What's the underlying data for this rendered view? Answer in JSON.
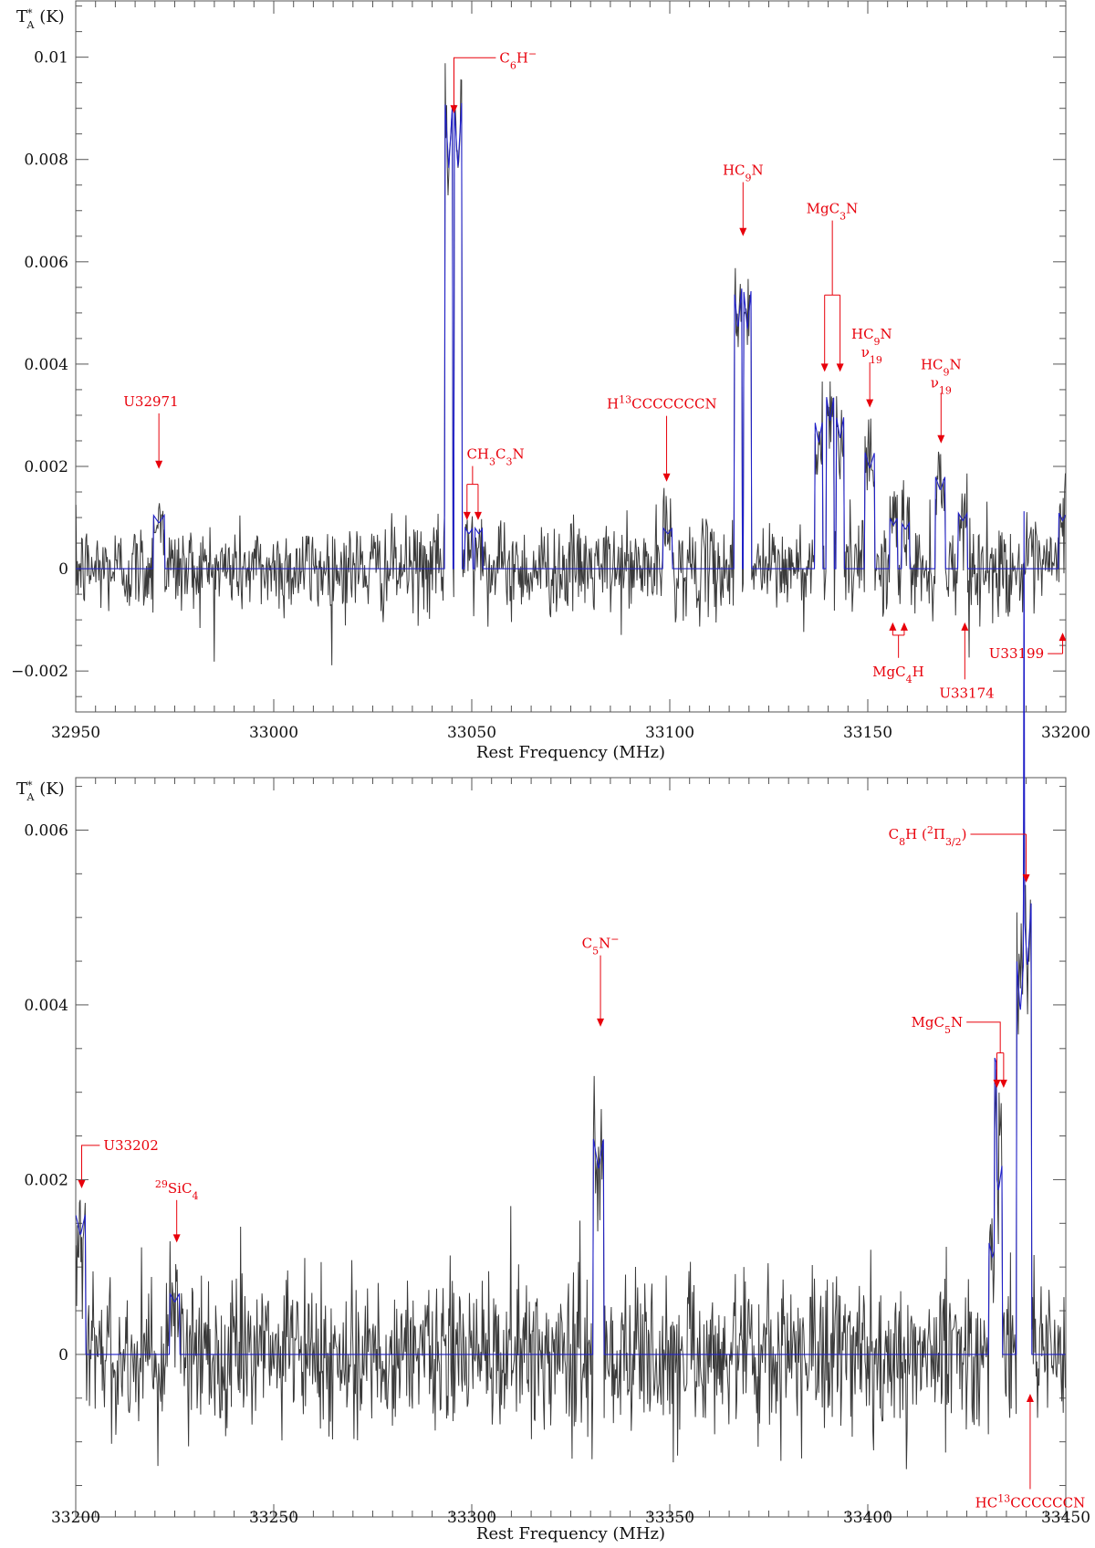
{
  "chart_data": [
    {
      "type": "line",
      "xlabel": "Rest Frequency (MHz)",
      "ylabel": {
        "main": "T",
        "sup": "*",
        "sub": "A",
        "unit": " (K)"
      },
      "xlim": [
        32950,
        33200
      ],
      "ylim": [
        -0.0028,
        0.0111
      ],
      "xticks": [
        32950,
        33000,
        33050,
        33100,
        33150,
        33200
      ],
      "xtick_labels": [
        "32950",
        "33000",
        "33050",
        "33100",
        "33150",
        "33200"
      ],
      "yticks": [
        -0.002,
        0,
        0.002,
        0.004,
        0.006,
        0.008,
        0.01
      ],
      "ytick_labels": [
        "−0.002",
        "0",
        "0.002",
        "0.004",
        "0.006",
        "0.008",
        "0.01"
      ],
      "grid": false,
      "series": [
        {
          "kind": "spectrum",
          "color": "#3a3a3a"
        },
        {
          "kind": "fit",
          "color": "#2020c8"
        }
      ],
      "lines": [
        {
          "freq": 32971,
          "amp": 0.00105,
          "width": 1.4
        },
        {
          "freq": 33044.2,
          "amp": 0.0092,
          "width": 1.0
        },
        {
          "freq": 33046.5,
          "amp": 0.0092,
          "width": 1.0
        },
        {
          "freq": 33049.3,
          "amp": 0.0008,
          "width": 1.0
        },
        {
          "freq": 33051.8,
          "amp": 0.0008,
          "width": 1.0
        },
        {
          "freq": 33099.5,
          "amp": 0.0008,
          "width": 1.2
        },
        {
          "freq": 33117.2,
          "amp": 0.0055,
          "width": 1.0
        },
        {
          "freq": 33119.6,
          "amp": 0.0055,
          "width": 1.0
        },
        {
          "freq": 33137.6,
          "amp": 0.0029,
          "width": 1.0
        },
        {
          "freq": 33140.5,
          "amp": 0.0034,
          "width": 1.0
        },
        {
          "freq": 33143.0,
          "amp": 0.003,
          "width": 1.0
        },
        {
          "freq": 33150.5,
          "amp": 0.0023,
          "width": 1.3
        },
        {
          "freq": 33156.5,
          "amp": 0.001,
          "width": 1.0
        },
        {
          "freq": 33159.5,
          "amp": 0.0009,
          "width": 1.0
        },
        {
          "freq": 33168.3,
          "amp": 0.0018,
          "width": 1.2
        },
        {
          "freq": 33174.0,
          "amp": 0.0011,
          "width": 1.2
        },
        {
          "freq": 33199.2,
          "amp": 0.0011,
          "width": 1.0
        }
      ],
      "annotations": [
        {
          "label_html": "U32971",
          "label_freq": 32969,
          "label_y": 0.00318,
          "arrows": [
            {
              "freq": 32971,
              "tip": 0.00195
            }
          ],
          "dir": "down"
        },
        {
          "label_html": "C<tspan baseline-shift='sub' font-size='11'>6</tspan>H<tspan baseline-shift='super' font-size='11'>−</tspan>",
          "label_freq": 33057,
          "label_y": 0.0099,
          "anchor": "start",
          "arrows": [
            {
              "freq": 33045.5,
              "tip": 0.0089
            }
          ],
          "dir": "down",
          "leader": "left"
        },
        {
          "label_html": "CH<tspan baseline-shift='sub' font-size='11'>3</tspan>C<tspan baseline-shift='sub' font-size='11'>3</tspan>N",
          "label_freq": 33056,
          "label_y": 0.00215,
          "arrows": [
            {
              "freq": 33048.8,
              "tip": 0.00095
            },
            {
              "freq": 33051.6,
              "tip": 0.00095
            }
          ],
          "dir": "down",
          "bracket": 0.00165
        },
        {
          "label_html": "H<tspan baseline-shift='super' font-size='11'>13</tspan>CCCCCCCN",
          "label_freq": 33098,
          "label_y": 0.00313,
          "arrows": [
            {
              "freq": 33099.2,
              "tip": 0.0017
            }
          ],
          "dir": "down"
        },
        {
          "label_html": "HC<tspan baseline-shift='sub' font-size='11'>9</tspan>N",
          "label_freq": 33118.5,
          "label_y": 0.0077,
          "arrows": [
            {
              "freq": 33118.5,
              "tip": 0.0065
            }
          ],
          "dir": "down"
        },
        {
          "label_html": "MgC<tspan baseline-shift='sub' font-size='11'>3</tspan>N",
          "label_freq": 33141,
          "label_y": 0.00695,
          "arrows": [
            {
              "freq": 33139.1,
              "tip": 0.00385
            },
            {
              "freq": 33143.0,
              "tip": 0.00385
            }
          ],
          "dir": "down",
          "bracket": 0.00535
        },
        {
          "label_html": "HC<tspan baseline-shift='sub' font-size='11'>9</tspan>N",
          "label_freq": 33151,
          "label_y": 0.0045,
          "arrows": [
            {
              "freq": 33150.5,
              "tip": 0.00315
            }
          ],
          "dir": "down",
          "sub_label_html": "ν<tspan baseline-shift='sub' font-size='11'>19</tspan>"
        },
        {
          "label_html": "HC<tspan baseline-shift='sub' font-size='11'>9</tspan>N",
          "label_freq": 33168.5,
          "label_y": 0.0039,
          "arrows": [
            {
              "freq": 33168.5,
              "tip": 0.00245
            }
          ],
          "dir": "down",
          "sub_label_html": "ν<tspan baseline-shift='sub' font-size='11'>19</tspan>"
        },
        {
          "label_html": "MgC<tspan baseline-shift='sub' font-size='11'>4</tspan>H",
          "label_freq": 33157.7,
          "label_y": -0.0021,
          "arrows": [
            {
              "freq": 33156.3,
              "tip": -0.00105
            },
            {
              "freq": 33159.2,
              "tip": -0.00105
            }
          ],
          "dir": "up",
          "bracket": -0.0013
        },
        {
          "label_html": "U33174",
          "label_freq": 33175,
          "label_y": -0.00252,
          "arrows": [
            {
              "freq": 33174.5,
              "tip": -0.00105
            }
          ],
          "dir": "up"
        },
        {
          "label_html": "U33199",
          "label_freq": 33194.5,
          "label_y": -0.00175,
          "anchor": "end",
          "arrows": [
            {
              "freq": 33199.2,
              "tip": -0.00125
            }
          ],
          "dir": "up",
          "leader": "right"
        }
      ]
    },
    {
      "type": "line",
      "xlabel": "Rest Frequency (MHz)",
      "ylabel": {
        "main": "T",
        "sup": "*",
        "sub": "A",
        "unit": " (K)"
      },
      "xlim": [
        33200,
        33450
      ],
      "ylim": [
        -0.00186,
        0.0066
      ],
      "xticks": [
        33200,
        33250,
        33300,
        33350,
        33400,
        33450
      ],
      "xtick_labels": [
        "33200",
        "33250",
        "33300",
        "33350",
        "33400",
        "33450"
      ],
      "yticks": [
        0,
        0.002,
        0.004,
        0.006
      ],
      "ytick_labels": [
        "0",
        "0.002",
        "0.004",
        "0.006"
      ],
      "grid": false,
      "series": [
        {
          "kind": "spectrum",
          "color": "#3a3a3a"
        },
        {
          "kind": "fit",
          "color": "#2020c8"
        }
      ],
      "lines": [
        {
          "freq": 33201.2,
          "amp": 0.0016,
          "width": 1.2
        },
        {
          "freq": 33225.0,
          "amp": 0.0007,
          "width": 1.2
        },
        {
          "freq": 33332.0,
          "amp": 0.0025,
          "width": 1.4
        },
        {
          "freq": 33431.5,
          "amp": 0.0013,
          "width": 1.0
        },
        {
          "freq": 33433.0,
          "amp": 0.0022,
          "width": 1.0
        },
        {
          "freq": 33438.5,
          "amp": 0.0046,
          "width": 1.0
        },
        {
          "freq": 33440.3,
          "amp": 0.0052,
          "width": 1.0
        }
      ],
      "annotations": [
        {
          "label_html": "U33202",
          "label_freq": 33207,
          "label_y": 0.00234,
          "anchor": "start",
          "arrows": [
            {
              "freq": 33201.5,
              "tip": 0.0019
            }
          ],
          "dir": "down",
          "leader": "left"
        },
        {
          "label_html": "<tspan baseline-shift='super' font-size='11'>29</tspan>SiC<tspan baseline-shift='sub' font-size='11'>4</tspan>",
          "label_freq": 33225.5,
          "label_y": 0.00185,
          "arrows": [
            {
              "freq": 33225.5,
              "tip": 0.00128
            }
          ],
          "dir": "down"
        },
        {
          "label_html": "C<tspan baseline-shift='sub' font-size='11'>5</tspan>N<tspan baseline-shift='super' font-size='11'>−</tspan>",
          "label_freq": 33332.5,
          "label_y": 0.00465,
          "arrows": [
            {
              "freq": 33332.5,
              "tip": 0.00375
            }
          ],
          "dir": "down"
        },
        {
          "label_html": "C<tspan baseline-shift='sub' font-size='11'>8</tspan>H (<tspan baseline-shift='super' font-size='11'>2</tspan>Π<tspan baseline-shift='sub' font-size='11'>3/2</tspan>)",
          "label_freq": 33425,
          "label_y": 0.0059,
          "anchor": "end",
          "arrows": [
            {
              "freq": 33440.0,
              "tip": 0.0054
            }
          ],
          "dir": "down",
          "leader": "right"
        },
        {
          "label_html": "MgC<tspan baseline-shift='sub' font-size='11'>5</tspan>N",
          "label_freq": 33424,
          "label_y": 0.00375,
          "anchor": "end",
          "arrows": [
            {
              "freq": 33432.6,
              "tip": 0.00305
            },
            {
              "freq": 33434.3,
              "tip": 0.00305
            }
          ],
          "dir": "down",
          "bracket": 0.00345,
          "leader": "right"
        },
        {
          "label_html": "HC<tspan baseline-shift='super' font-size='11'>13</tspan>CCCCCCN",
          "label_freq": 33441,
          "label_y": -0.00175,
          "arrows": [
            {
              "freq": 33441.0,
              "tip": -0.00045
            }
          ],
          "dir": "up"
        }
      ]
    }
  ]
}
